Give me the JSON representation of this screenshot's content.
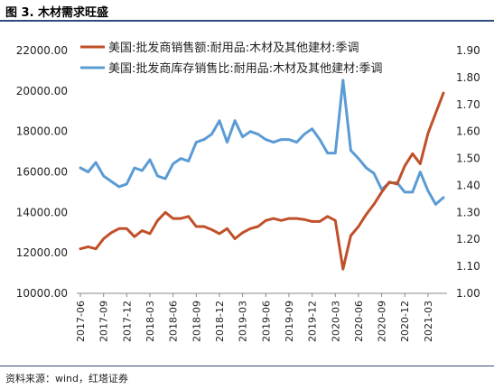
{
  "caption": "图 3. 木材需求旺盛",
  "source": "资料来源：wind，红塔证券",
  "colors": {
    "series1": "#c0502a",
    "series2": "#5b9bd5",
    "border": "#2f4b7c"
  },
  "chart_data": {
    "type": "line",
    "title": "",
    "x": [
      "2017-06",
      "2017-07",
      "2017-08",
      "2017-09",
      "2017-10",
      "2017-11",
      "2017-12",
      "2018-01",
      "2018-02",
      "2018-03",
      "2018-04",
      "2018-05",
      "2018-06",
      "2018-07",
      "2018-08",
      "2018-09",
      "2018-10",
      "2018-11",
      "2018-12",
      "2019-01",
      "2019-02",
      "2019-03",
      "2019-04",
      "2019-05",
      "2019-06",
      "2019-07",
      "2019-08",
      "2019-09",
      "2019-10",
      "2019-11",
      "2019-12",
      "2020-01",
      "2020-02",
      "2020-03",
      "2020-04",
      "2020-05",
      "2020-06",
      "2020-07",
      "2020-08",
      "2020-09",
      "2020-10",
      "2020-11",
      "2020-12",
      "2021-01",
      "2021-02",
      "2021-03",
      "2021-04",
      "2021-05"
    ],
    "x_tick_labels": [
      "2017-06",
      "2017-09",
      "2017-12",
      "2018-03",
      "2018-06",
      "2018-09",
      "2018-12",
      "2019-03",
      "2019-06",
      "2019-09",
      "2019-12",
      "2020-03",
      "2020-06",
      "2020-09",
      "2020-12",
      "2021-03"
    ],
    "y_left": {
      "ticks": [
        "10000.00",
        "12000.00",
        "14000.00",
        "16000.00",
        "18000.00",
        "20000.00",
        "22000.00"
      ],
      "range": [
        10000,
        22000
      ]
    },
    "y_right": {
      "ticks": [
        "1.00",
        "1.10",
        "1.20",
        "1.30",
        "1.40",
        "1.50",
        "1.60",
        "1.70",
        "1.80",
        "1.90"
      ],
      "range": [
        1.0,
        1.9
      ]
    },
    "legend_position": "top-right",
    "series": [
      {
        "name": "美国:批发商销售额:耐用品:木材及其他建材:季调",
        "axis": "left",
        "values": [
          12200,
          12300,
          12200,
          12700,
          13000,
          13200,
          13200,
          12800,
          13100,
          12950,
          13600,
          14000,
          13700,
          13700,
          13800,
          13300,
          13300,
          13150,
          12950,
          13200,
          12700,
          13000,
          13200,
          13300,
          13600,
          13700,
          13600,
          13700,
          13700,
          13650,
          13550,
          13550,
          13800,
          13600,
          11200,
          12850,
          13300,
          13900,
          14400,
          15000,
          15500,
          15400,
          16300,
          16900,
          16400,
          17900,
          18900,
          19900
        ]
      },
      {
        "name": "美国:批发商库存销售比:耐用品:木材及其他建材:季调",
        "axis": "right",
        "values": [
          1.465,
          1.45,
          1.485,
          1.435,
          1.415,
          1.395,
          1.405,
          1.465,
          1.455,
          1.495,
          1.435,
          1.425,
          1.48,
          1.5,
          1.49,
          1.56,
          1.57,
          1.59,
          1.64,
          1.56,
          1.64,
          1.58,
          1.6,
          1.59,
          1.57,
          1.56,
          1.57,
          1.57,
          1.56,
          1.59,
          1.61,
          1.57,
          1.52,
          1.52,
          1.79,
          1.53,
          1.5,
          1.465,
          1.445,
          1.385,
          1.41,
          1.41,
          1.375,
          1.375,
          1.45,
          1.38,
          1.33,
          1.355
        ]
      }
    ]
  }
}
